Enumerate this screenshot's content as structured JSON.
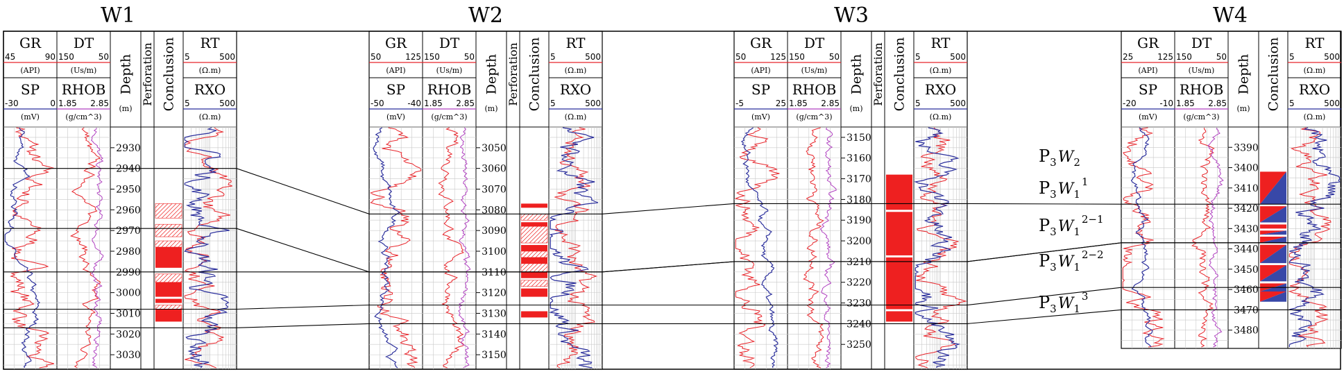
{
  "figure": {
    "wells": [
      {
        "id": "W1",
        "title": "W1",
        "depth_ticks": [
          2930,
          2940,
          2950,
          2960,
          2970,
          2980,
          2990,
          3000,
          3010,
          3020,
          3030
        ],
        "depth_range": [
          2920,
          3037
        ],
        "perforation": true,
        "headers": {
          "gr": {
            "name": "GR",
            "min": "45",
            "max": "90",
            "unit": "(API)"
          },
          "dt": {
            "name": "DT",
            "min": "150",
            "max": "50",
            "unit": "(Us/m)"
          },
          "sp": {
            "name": "SP",
            "min": "-30",
            "max": "0",
            "unit": "(mV)"
          },
          "rhob": {
            "name": "RHOB",
            "min": "1.85",
            "max": "2.85",
            "unit": "(g/cm^3)"
          },
          "rt": {
            "name": "RT",
            "min": "5",
            "max": "500",
            "unit": "(Ω.m)"
          },
          "rxo": {
            "name": "RXO",
            "min": "5",
            "max": "500",
            "unit": "(Ω.m)"
          }
        }
      },
      {
        "id": "W2",
        "title": "W2",
        "depth_ticks": [
          3050,
          3060,
          3070,
          3080,
          3090,
          3100,
          3110,
          3120,
          3130,
          3140,
          3150
        ],
        "depth_range": [
          3040,
          3157
        ],
        "perforation": true,
        "headers": {
          "gr": {
            "name": "GR",
            "min": "50",
            "max": "125",
            "unit": "(API)"
          },
          "dt": {
            "name": "DT",
            "min": "150",
            "max": "50",
            "unit": "(Us/m)"
          },
          "sp": {
            "name": "SP",
            "min": "-50",
            "max": "-40",
            "unit": "(mV)"
          },
          "rhob": {
            "name": "RHOB",
            "min": "1.85",
            "max": "2.85",
            "unit": "(g/cm^3)"
          },
          "rt": {
            "name": "RT",
            "min": "5",
            "max": "500",
            "unit": "(Ω.m)"
          },
          "rxo": {
            "name": "RXO",
            "min": "5",
            "max": "500",
            "unit": "(Ω.m)"
          }
        }
      },
      {
        "id": "W3",
        "title": "W3",
        "depth_ticks": [
          3150,
          3160,
          3170,
          3180,
          3190,
          3200,
          3210,
          3220,
          3230,
          3240,
          3250
        ],
        "depth_range": [
          3145,
          3262
        ],
        "perforation": true,
        "headers": {
          "gr": {
            "name": "GR",
            "min": "50",
            "max": "125",
            "unit": "(API)"
          },
          "dt": {
            "name": "DT",
            "min": "150",
            "max": "50",
            "unit": "(Us/m)"
          },
          "sp": {
            "name": "SP",
            "min": "-5",
            "max": "25",
            "unit": "(mV)"
          },
          "rhob": {
            "name": "RHOB",
            "min": "1.85",
            "max": "2.85",
            "unit": "(g/cm^3)"
          },
          "rt": {
            "name": "RT",
            "min": "5",
            "max": "500",
            "unit": "(Ω.m)"
          },
          "rxo": {
            "name": "RXO",
            "min": "5",
            "max": "500",
            "unit": "(Ω.m)"
          }
        }
      },
      {
        "id": "W4",
        "title": "W4",
        "depth_ticks": [
          3390,
          3400,
          3410,
          3420,
          3430,
          3440,
          3450,
          3460,
          3470,
          3480
        ],
        "depth_range": [
          3380,
          3489
        ],
        "perforation": false,
        "headers": {
          "gr": {
            "name": "GR",
            "min": "25",
            "max": "125",
            "unit": "(API)"
          },
          "dt": {
            "name": "DT",
            "min": "150",
            "max": "50",
            "unit": "(Us/m)"
          },
          "sp": {
            "name": "SP",
            "min": "-20",
            "max": "-10",
            "unit": "(mV)"
          },
          "rhob": {
            "name": "RHOB",
            "min": "1.85",
            "max": "2.85",
            "unit": "(g/cm^3)"
          },
          "rt": {
            "name": "RT",
            "min": "5",
            "max": "500",
            "unit": "(Ω.m)"
          },
          "rxo": {
            "name": "RXO",
            "min": "5",
            "max": "500",
            "unit": "(Ω.m)"
          }
        }
      }
    ],
    "track_labels": {
      "depth": "Depth",
      "depth_unit": "(m)",
      "perforation": "Perforation",
      "conclusion": "Conclusion"
    },
    "zones": [
      {
        "base": "P",
        "sub1": "3",
        "italic": "W",
        "sub2": "2",
        "sup": ""
      },
      {
        "base": "P",
        "sub1": "3",
        "italic": "W",
        "sub2": "1",
        "sup": "1"
      },
      {
        "base": "P",
        "sub1": "3",
        "italic": "W",
        "sub2": "1",
        "sup": "2−1"
      },
      {
        "base": "P",
        "sub1": "3",
        "italic": "W",
        "sub2": "1",
        "sup": "2−2"
      },
      {
        "base": "P",
        "sub1": "3",
        "italic": "W",
        "sub2": "1",
        "sup": "3"
      }
    ],
    "correlation_tops": [
      {
        "name": "P3W2-P3W1^1",
        "depths": [
          2940,
          3082,
          3182,
          3418
        ]
      },
      {
        "name": "P3W1^1-P3W1^2-1",
        "depths": [
          2969,
          3110,
          3210,
          3437
        ]
      },
      {
        "name": "P3W1^2-1-P3W1^2-2",
        "depths": [
          2990,
          3110,
          3210,
          3437
        ]
      },
      {
        "name": "P3W1^2-2-P3W1^3",
        "depths": [
          3008,
          3126,
          3231,
          3459
        ]
      },
      {
        "name": "base-P3W1^3",
        "depths": [
          3017,
          3135,
          3240,
          3470
        ]
      }
    ],
    "conclusions": {
      "W1": [
        {
          "top": 2957,
          "bottom": 2964,
          "type": "hatch"
        },
        {
          "top": 2967,
          "bottom": 2973,
          "type": "hatch"
        },
        {
          "top": 2975,
          "bottom": 2978,
          "type": "hatch"
        },
        {
          "top": 2978,
          "bottom": 2988,
          "type": "solid"
        },
        {
          "top": 2991,
          "bottom": 2995,
          "type": "hatch"
        },
        {
          "top": 2995,
          "bottom": 3002,
          "type": "solid"
        },
        {
          "top": 3003,
          "bottom": 3005,
          "type": "solid"
        },
        {
          "top": 3006,
          "bottom": 3008,
          "type": "hatch"
        },
        {
          "top": 3008,
          "bottom": 3014,
          "type": "solid"
        }
      ],
      "W2": [
        {
          "top": 3077,
          "bottom": 3079,
          "type": "solid"
        },
        {
          "top": 3082,
          "bottom": 3085,
          "type": "hatch"
        },
        {
          "top": 3086,
          "bottom": 3088,
          "type": "solid"
        },
        {
          "top": 3088,
          "bottom": 3096,
          "type": "hatch"
        },
        {
          "top": 3097,
          "bottom": 3100,
          "type": "solid"
        },
        {
          "top": 3100,
          "bottom": 3103,
          "type": "hatch"
        },
        {
          "top": 3103,
          "bottom": 3106,
          "type": "solid"
        },
        {
          "top": 3106,
          "bottom": 3110,
          "type": "hatch"
        },
        {
          "top": 3110,
          "bottom": 3113,
          "type": "solid"
        },
        {
          "top": 3114,
          "bottom": 3117,
          "type": "hatch"
        },
        {
          "top": 3118,
          "bottom": 3122,
          "type": "solid"
        },
        {
          "top": 3129,
          "bottom": 3132,
          "type": "solid"
        }
      ],
      "W3": [
        {
          "top": 3168,
          "bottom": 3185,
          "type": "solid"
        },
        {
          "top": 3186,
          "bottom": 3207,
          "type": "solid"
        },
        {
          "top": 3208,
          "bottom": 3233,
          "type": "solid"
        },
        {
          "top": 3234,
          "bottom": 3239,
          "type": "solid"
        }
      ],
      "W4": [
        {
          "top": 3402,
          "bottom": 3418,
          "type": "split"
        },
        {
          "top": 3419,
          "bottom": 3427,
          "type": "split"
        },
        {
          "top": 3428,
          "bottom": 3430,
          "type": "solid"
        },
        {
          "top": 3431,
          "bottom": 3433,
          "type": "split"
        },
        {
          "top": 3434,
          "bottom": 3437,
          "type": "split"
        },
        {
          "top": 3438,
          "bottom": 3447,
          "type": "split"
        },
        {
          "top": 3448,
          "bottom": 3456,
          "type": "split"
        },
        {
          "top": 3457,
          "bottom": 3461,
          "type": "split"
        },
        {
          "top": 3461,
          "bottom": 3466,
          "type": "split"
        }
      ]
    },
    "colors": {
      "gr": "#e8242a",
      "sp": "#2b2f9c",
      "dt": "#e8242a",
      "rhob": "#b040c0",
      "rt": "#e8242a",
      "rxo": "#2b2f9c",
      "conclusion_red": "#ee2020",
      "conclusion_blue": "#3848a8",
      "grid": "#c8c8c8",
      "frame": "#000000"
    }
  }
}
